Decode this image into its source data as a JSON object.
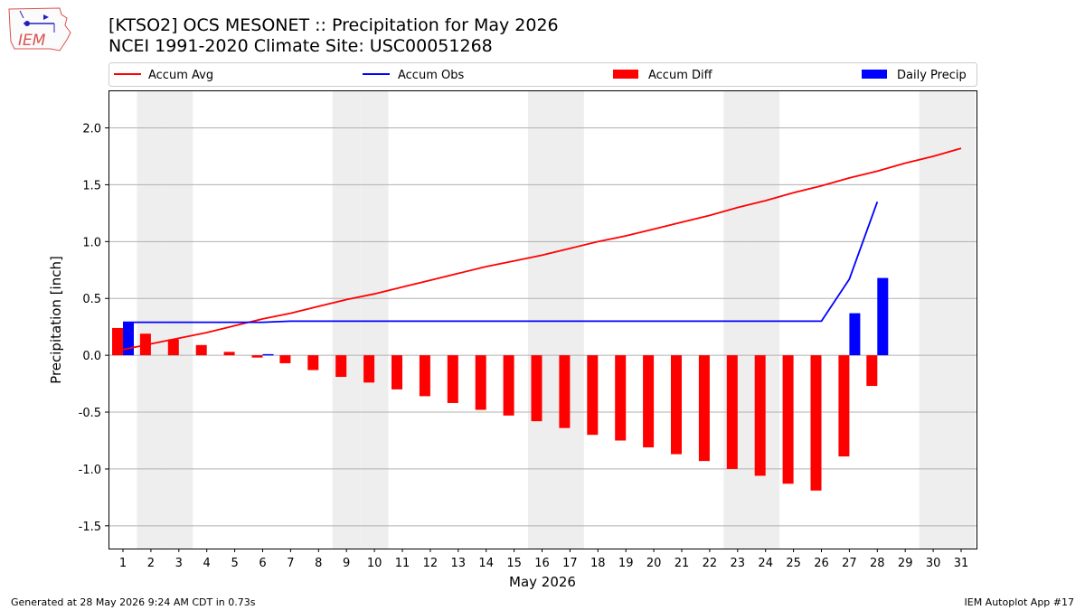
{
  "header": {
    "title_line1": "[KTSO2] OCS MESONET :: Precipitation for May 2026",
    "title_line2": "NCEI 1991-2020 Climate Site: USC00051268",
    "logo_text": "IEM"
  },
  "footer": {
    "generated": "Generated at 28 May 2026 9:24 AM CDT in 0.73s",
    "app": "IEM Autoplot App #17"
  },
  "colors": {
    "accum_avg": "#ff0000",
    "accum_obs": "#0000ff",
    "accum_diff": "#ff0000",
    "daily_precip": "#0000ff",
    "weekend_shade": "#eeeeee",
    "grid": "#b0b0b0"
  },
  "chart_data": {
    "type": "bar",
    "xlabel": "May 2026",
    "ylabel": "Precipitation [inch]",
    "ylim": [
      -1.7,
      2.33
    ],
    "yticks": [
      -1.5,
      -1.0,
      -0.5,
      0.0,
      0.5,
      1.0,
      1.5,
      2.0
    ],
    "xticks": [
      1,
      2,
      3,
      4,
      5,
      6,
      7,
      8,
      9,
      10,
      11,
      12,
      13,
      14,
      15,
      16,
      17,
      18,
      19,
      20,
      21,
      22,
      23,
      24,
      25,
      26,
      27,
      28,
      29,
      30,
      31
    ],
    "grid": "horizontal",
    "legend_position": "top",
    "weekend_days": [
      2,
      3,
      9,
      10,
      16,
      17,
      23,
      24,
      30,
      31
    ],
    "series": [
      {
        "name": "Accum Avg",
        "kind": "line",
        "days": [
          1,
          2,
          3,
          4,
          5,
          6,
          7,
          8,
          9,
          10,
          11,
          12,
          13,
          14,
          15,
          16,
          17,
          18,
          19,
          20,
          21,
          22,
          23,
          24,
          25,
          26,
          27,
          28,
          29,
          30,
          31
        ],
        "values": [
          0.05,
          0.1,
          0.15,
          0.2,
          0.26,
          0.32,
          0.37,
          0.43,
          0.49,
          0.54,
          0.6,
          0.66,
          0.72,
          0.78,
          0.83,
          0.88,
          0.94,
          1.0,
          1.05,
          1.11,
          1.17,
          1.23,
          1.3,
          1.36,
          1.43,
          1.49,
          1.56,
          1.62,
          1.69,
          1.75,
          1.82
        ]
      },
      {
        "name": "Accum Obs",
        "kind": "line",
        "days": [
          1,
          2,
          3,
          4,
          5,
          6,
          7,
          8,
          9,
          10,
          11,
          12,
          13,
          14,
          15,
          16,
          17,
          18,
          19,
          20,
          21,
          22,
          23,
          24,
          25,
          26,
          27,
          28
        ],
        "values": [
          0.29,
          0.29,
          0.29,
          0.29,
          0.29,
          0.29,
          0.3,
          0.3,
          0.3,
          0.3,
          0.3,
          0.3,
          0.3,
          0.3,
          0.3,
          0.3,
          0.3,
          0.3,
          0.3,
          0.3,
          0.3,
          0.3,
          0.3,
          0.3,
          0.3,
          0.3,
          0.67,
          1.35
        ]
      },
      {
        "name": "Accum Diff",
        "kind": "bar",
        "days": [
          1,
          2,
          3,
          4,
          5,
          6,
          7,
          8,
          9,
          10,
          11,
          12,
          13,
          14,
          15,
          16,
          17,
          18,
          19,
          20,
          21,
          22,
          23,
          24,
          25,
          26,
          27,
          28
        ],
        "values": [
          0.24,
          0.19,
          0.14,
          0.09,
          0.03,
          -0.02,
          -0.07,
          -0.13,
          -0.19,
          -0.24,
          -0.3,
          -0.36,
          -0.42,
          -0.48,
          -0.53,
          -0.58,
          -0.64,
          -0.7,
          -0.75,
          -0.81,
          -0.87,
          -0.93,
          -1.0,
          -1.06,
          -1.13,
          -1.19,
          -0.89,
          -0.27
        ]
      },
      {
        "name": "Daily Precip",
        "kind": "bar",
        "days": [
          1,
          6,
          27,
          28
        ],
        "values": [
          0.29,
          0.01,
          0.37,
          0.68
        ]
      }
    ]
  }
}
